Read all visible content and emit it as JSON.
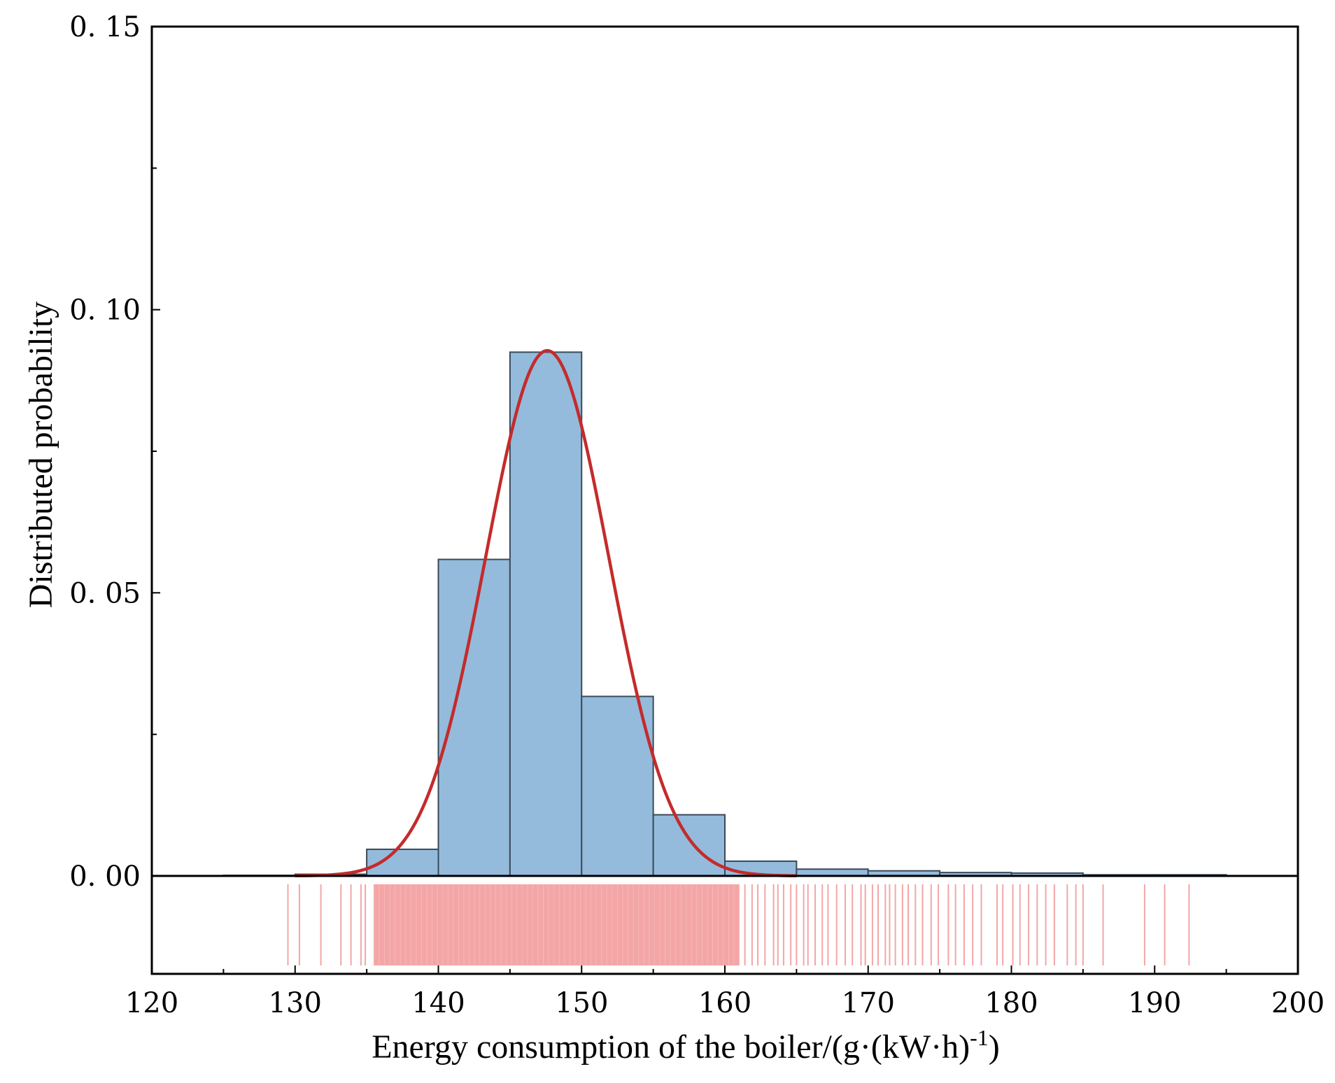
{
  "chart_data": {
    "type": "bar",
    "subtype": "histogram-with-density-and-rug",
    "xlabel": "Energy consumption of the boiler/(g·(kW·h)",
    "xlabel_superscript": "-1",
    "xlabel_suffix": ")",
    "ylabel": "Distributed probability",
    "xlim": [
      120,
      200
    ],
    "ylim": [
      0,
      0.15
    ],
    "x_ticks": [
      120,
      130,
      140,
      150,
      160,
      170,
      180,
      190,
      200
    ],
    "x_tick_labels": [
      "120",
      "130",
      "140",
      "150",
      "160",
      "170",
      "180",
      "190",
      "200"
    ],
    "y_ticks": [
      0,
      0.05,
      0.1,
      0.15
    ],
    "y_tick_labels": [
      "0. 00",
      "0. 05",
      "0. 10",
      "0. 15"
    ],
    "bins": [
      {
        "start": 125,
        "end": 130,
        "value": 0.0001
      },
      {
        "start": 130,
        "end": 135,
        "value": 0.0003
      },
      {
        "start": 135,
        "end": 140,
        "value": 0.0047
      },
      {
        "start": 140,
        "end": 145,
        "value": 0.0559
      },
      {
        "start": 145,
        "end": 150,
        "value": 0.0925
      },
      {
        "start": 150,
        "end": 155,
        "value": 0.0317
      },
      {
        "start": 155,
        "end": 160,
        "value": 0.0108
      },
      {
        "start": 160,
        "end": 165,
        "value": 0.0026
      },
      {
        "start": 165,
        "end": 170,
        "value": 0.0012
      },
      {
        "start": 170,
        "end": 175,
        "value": 0.0009
      },
      {
        "start": 175,
        "end": 180,
        "value": 0.0006
      },
      {
        "start": 180,
        "end": 185,
        "value": 0.0005
      },
      {
        "start": 185,
        "end": 190,
        "value": 0.0002
      },
      {
        "start": 190,
        "end": 195,
        "value": 0.0002
      }
    ],
    "density_curve": {
      "type": "normal",
      "mean": 147.6,
      "sd": 4.3,
      "x_start": 130,
      "x_end": 165
    },
    "rug": {
      "dense_range": [
        135.5,
        161.0
      ],
      "points": [
        129.5,
        130.3,
        131.8,
        133.2,
        133.9,
        134.6,
        134.9,
        161.4,
        161.9,
        162.3,
        162.8,
        163.4,
        163.7,
        164.1,
        164.6,
        165.0,
        165.5,
        165.8,
        166.3,
        166.8,
        167.2,
        167.8,
        168.4,
        168.9,
        169.5,
        169.8,
        170.3,
        170.7,
        171.2,
        171.5,
        171.9,
        172.4,
        172.8,
        173.3,
        173.8,
        174.4,
        174.9,
        175.6,
        176.1,
        176.7,
        177.3,
        177.9,
        179.0,
        179.4,
        180.1,
        180.6,
        181.2,
        181.8,
        182.4,
        183.0,
        183.9,
        184.5,
        185.0,
        186.4,
        189.3,
        190.7,
        192.4
      ]
    },
    "colors": {
      "bar_fill": "#94bbdb",
      "bar_edge": "#3a4a5a",
      "curve": "#c42b2b",
      "rug": "#f4a6a6"
    },
    "legend": "none",
    "grid": false
  }
}
